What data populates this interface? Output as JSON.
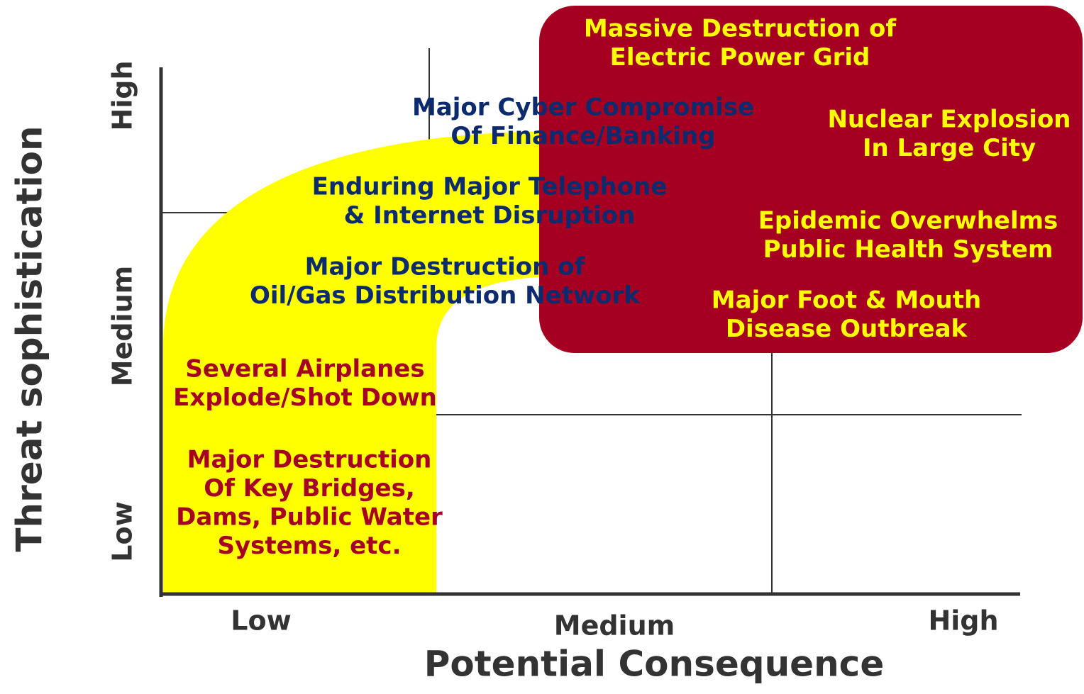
{
  "y_axis": {
    "title": "Threat sophistication",
    "ticks": [
      "Low",
      "Medium",
      "High"
    ]
  },
  "x_axis": {
    "title": "Potential Consequence",
    "ticks": [
      "Low",
      "Medium",
      "High"
    ]
  },
  "items": [
    {
      "lines": [
        "Massive Destruction of",
        "Electric Power Grid"
      ],
      "color": "#ffff00"
    },
    {
      "lines": [
        "Major Cyber Compromise",
        "Of Finance/Banking"
      ],
      "color": "#0c2a6e"
    },
    {
      "lines": [
        "Nuclear Explosion",
        "In Large City"
      ],
      "color": "#ffff00"
    },
    {
      "lines": [
        "Enduring Major Telephone",
        "& Internet Disruption"
      ],
      "color": "#0c2a6e"
    },
    {
      "lines": [
        "Epidemic Overwhelms",
        "Public Health System"
      ],
      "color": "#ffff00"
    },
    {
      "lines": [
        "Major Destruction of",
        "Oil/Gas Distribution Network"
      ],
      "color": "#0c2a6e"
    },
    {
      "lines": [
        "Major Foot & Mouth",
        "Disease Outbreak"
      ],
      "color": "#ffff00"
    },
    {
      "lines": [
        "Several Airplanes",
        "Explode/Shot Down"
      ],
      "color": "#a50021"
    },
    {
      "lines": [
        "Major Destruction",
        "Of Key Bridges,",
        "Dams, Public Water",
        "Systems, etc."
      ],
      "color": "#a50021"
    }
  ]
}
